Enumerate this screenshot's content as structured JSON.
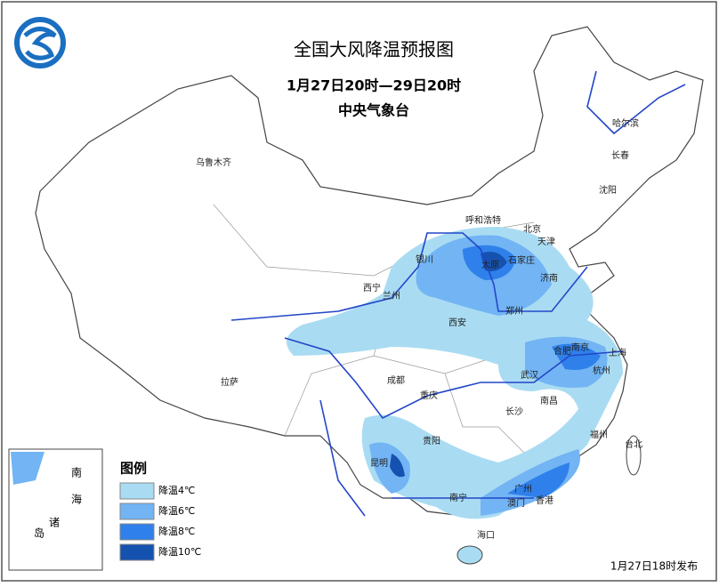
{
  "header": {
    "title": "全国大风降温预报图",
    "period": "1月27日20时—29日20时",
    "issuer": "中央气象台"
  },
  "cities": [
    "乌鲁木齐",
    "哈尔滨",
    "长春",
    "沈阳",
    "呼和浩特",
    "北京",
    "天津",
    "石家庄",
    "太原",
    "银川",
    "济南",
    "西宁",
    "兰州",
    "郑州",
    "西安",
    "南京",
    "合肥",
    "上海",
    "杭州",
    "武汉",
    "成都",
    "拉萨",
    "重庆",
    "南昌",
    "长沙",
    "贵阳",
    "福州",
    "台北",
    "昆明",
    "南宁",
    "广州",
    "香港",
    "澳门",
    "海口"
  ],
  "inset": {
    "labels": [
      "南",
      "海",
      "诸",
      "岛"
    ]
  },
  "legend": {
    "title": "图例",
    "items": [
      {
        "label": "降温4℃",
        "color": "#a9dcf2"
      },
      {
        "label": "降温6℃",
        "color": "#72b4f4"
      },
      {
        "label": "降温8℃",
        "color": "#2f80ea"
      },
      {
        "label": "降温10℃",
        "color": "#1552b0"
      }
    ]
  },
  "footer": "1月27日18时发布"
}
